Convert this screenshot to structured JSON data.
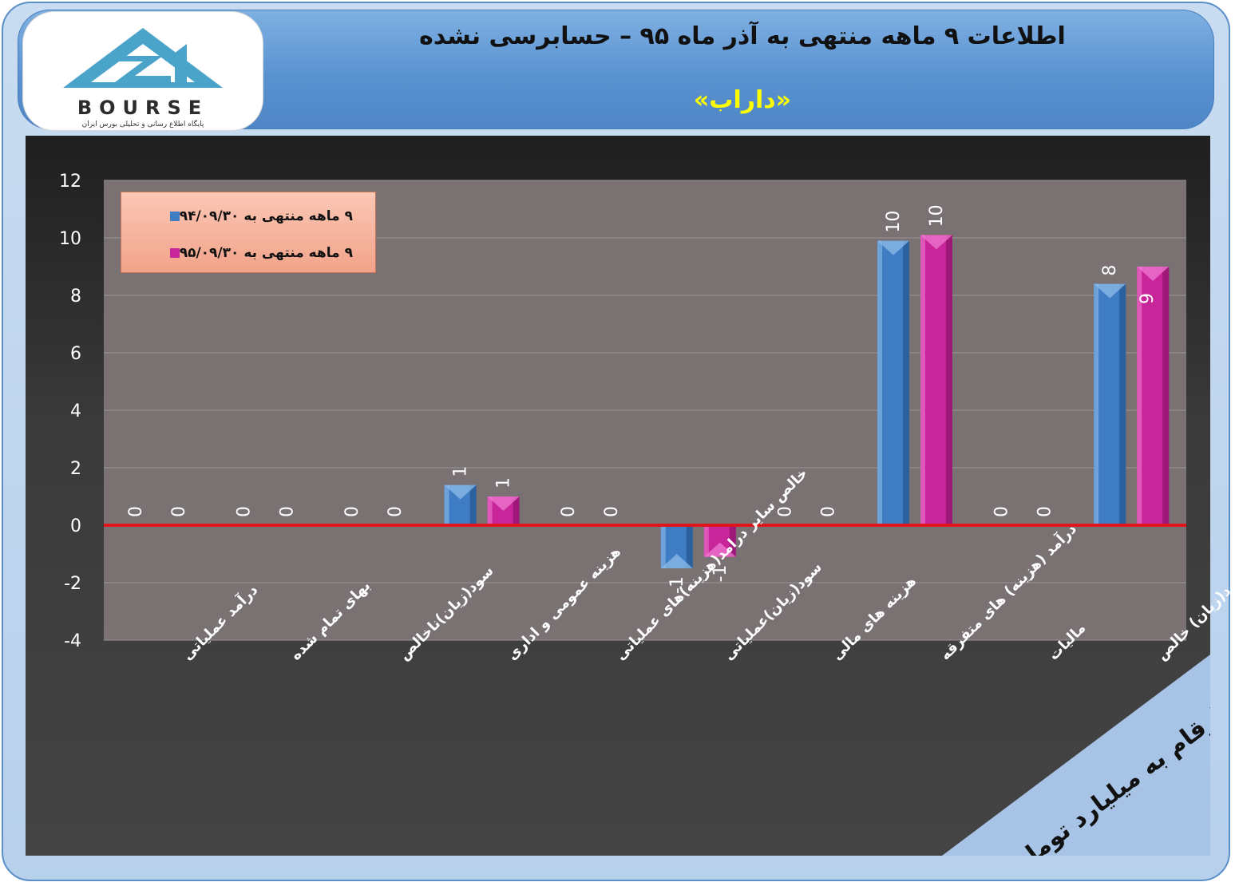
{
  "header": {
    "title": "اطلاعات ۹ ماهه منتهی به آذر ماه ۹۵ – حسابرسی نشده",
    "subtitle": "«داراب»"
  },
  "logo": {
    "brand": "BOURSE",
    "tagline": "پایگاه اطلاع رسانی و تحلیلی بورس ایران"
  },
  "colors": {
    "series_1": "#3e7cc4",
    "series_2": "#c8259a",
    "zero_line": "#e0141b",
    "plot_bg": "#7a7272"
  },
  "chart_data": {
    "type": "bar",
    "categories": [
      "درآمد عملیاتی",
      "بهای تمام شده",
      "سود(زیان)ناخالص",
      "هزینه عمومی و اداری",
      "خالص سایر درامد(هزینه)های عملیاتی",
      "سود(زیان)عملیاتی",
      "هزینه های مالی",
      "درآمد (هزینه) های متفرقه",
      "مالیات",
      "سود(زیان) خالص"
    ],
    "series": [
      {
        "name": "۹ ماهه منتهی به ۹۴/۰۹/۳۰",
        "values": [
          0,
          0,
          0,
          1.4,
          0,
          -1.5,
          0,
          9.9,
          0,
          8.4
        ],
        "labels": [
          "0",
          "0",
          "0",
          "1",
          "0",
          "-1",
          "0",
          "10",
          "0",
          "8"
        ]
      },
      {
        "name": "۹ ماهه منتهی به ۹۵/۰۹/۳۰",
        "values": [
          0,
          0,
          0,
          1.0,
          0,
          -1.1,
          0,
          10.1,
          0,
          9.0
        ],
        "labels": [
          "0",
          "0",
          "0",
          "1",
          "0",
          "-1",
          "0",
          "10",
          "0",
          "9"
        ]
      }
    ],
    "ylim": [
      -4,
      12
    ],
    "yticks": [
      "-4",
      "-2",
      "0",
      "2",
      "4",
      "6",
      "8",
      "10",
      "12"
    ],
    "grid": true,
    "legend_position": "top-left",
    "annotation": "ارقام به میلیارد تومان"
  }
}
